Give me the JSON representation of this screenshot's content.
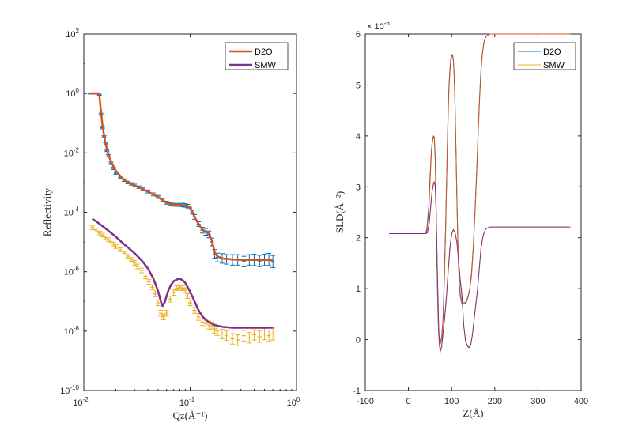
{
  "colors": {
    "blue": "#0072BD",
    "orange": "#D95319",
    "yellow": "#EDB120",
    "purple": "#7E2F8E",
    "axis": "#262626"
  },
  "chart_data": [
    {
      "type": "line",
      "scale": {
        "x": "log",
        "y": "log"
      },
      "xlabel": "Qz(Å⁻¹)",
      "ylabel": "Reflectivity",
      "xlim": [
        0.01,
        1
      ],
      "ylim": [
        1e-10,
        100
      ],
      "xticks": [
        {
          "base": "10",
          "exp": "-2"
        },
        {
          "base": "10",
          "exp": "-1"
        },
        {
          "base": "10",
          "exp": "0"
        }
      ],
      "yticks": [
        {
          "base": "10",
          "exp": "-10"
        },
        {
          "base": "10",
          "exp": "-8"
        },
        {
          "base": "10",
          "exp": "-6"
        },
        {
          "base": "10",
          "exp": "-4"
        },
        {
          "base": "10",
          "exp": "-2"
        },
        {
          "base": "10",
          "exp": "0"
        },
        {
          "base": "10",
          "exp": "2"
        }
      ],
      "legend": {
        "position": "top-right",
        "entries": [
          "D2O",
          "SMW"
        ]
      },
      "data_series": [
        {
          "color": "#0072BD",
          "errorbars": true,
          "x": [
            0.0115,
            0.0125,
            0.0135,
            0.014,
            0.0145,
            0.015,
            0.0155,
            0.016,
            0.0165,
            0.017,
            0.018,
            0.019,
            0.02,
            0.022,
            0.024,
            0.026,
            0.028,
            0.03,
            0.033,
            0.036,
            0.04,
            0.045,
            0.05,
            0.055,
            0.06,
            0.065,
            0.07,
            0.075,
            0.08,
            0.085,
            0.09,
            0.095,
            0.1,
            0.105,
            0.11,
            0.12,
            0.13,
            0.14,
            0.15,
            0.16,
            0.17,
            0.18,
            0.2,
            0.22,
            0.25,
            0.28,
            0.32,
            0.36,
            0.4,
            0.45,
            0.5,
            0.55,
            0.6
          ],
          "y": [
            1,
            1,
            1,
            0.9,
            0.2,
            0.07,
            0.035,
            0.02,
            0.012,
            0.008,
            0.0045,
            0.003,
            0.0021,
            0.0015,
            0.0012,
            0.001,
            0.0009,
            0.0008,
            0.0007,
            0.0006,
            0.0005,
            0.0004,
            0.00033,
            0.00026,
            0.00021,
            0.00019,
            0.00018,
            0.000178,
            0.000178,
            0.000175,
            0.00017,
            0.00016,
            0.00014,
            0.0001,
            7e-05,
            4e-05,
            2.5e-05,
            2.2e-05,
            1.8e-05,
            1e-05,
            4e-06,
            3e-06,
            2.8e-06,
            2.6e-06,
            2.5e-06,
            2.5e-06,
            2.2e-06,
            2.5e-06,
            2.5e-06,
            2.3e-06,
            2.5e-06,
            2.6e-06,
            2.2e-06
          ],
          "err_factor": [
            1.05,
            1.05,
            1.05,
            1.05,
            1.08,
            1.08,
            1.08,
            1.08,
            1.08,
            1.1,
            1.1,
            1.1,
            1.1,
            1.1,
            1.1,
            1.1,
            1.1,
            1.1,
            1.1,
            1.1,
            1.12,
            1.12,
            1.12,
            1.12,
            1.12,
            1.12,
            1.12,
            1.12,
            1.12,
            1.15,
            1.15,
            1.15,
            1.15,
            1.15,
            1.2,
            1.2,
            1.25,
            1.3,
            1.3,
            1.35,
            1.4,
            1.4,
            1.45,
            1.45,
            1.5,
            1.5,
            1.5,
            1.5,
            1.55,
            1.55,
            1.55,
            1.6,
            1.6
          ]
        },
        {
          "color": "#EDB120",
          "errorbars": true,
          "x": [
            0.012,
            0.013,
            0.014,
            0.015,
            0.016,
            0.017,
            0.018,
            0.019,
            0.02,
            0.022,
            0.024,
            0.026,
            0.028,
            0.03,
            0.032,
            0.035,
            0.038,
            0.041,
            0.044,
            0.047,
            0.05,
            0.053,
            0.056,
            0.06,
            0.065,
            0.07,
            0.075,
            0.08,
            0.085,
            0.09,
            0.095,
            0.1,
            0.11,
            0.12,
            0.13,
            0.14,
            0.15,
            0.16,
            0.17,
            0.18,
            0.2,
            0.22,
            0.25,
            0.28,
            0.32,
            0.36,
            0.4,
            0.45,
            0.5,
            0.55,
            0.6
          ],
          "y": [
            3e-05,
            2.5e-05,
            2e-05,
            1.7e-05,
            1.4e-05,
            1.2e-05,
            1e-05,
            8.5e-06,
            7e-06,
            5.5e-06,
            4.2e-06,
            3.3e-06,
            2.6e-06,
            2e-06,
            1.5e-06,
            1.1e-06,
            7e-07,
            4.5e-07,
            3e-07,
            1.8e-07,
            9e-08,
            4e-08,
            3e-08,
            4e-08,
            1.2e-07,
            2e-07,
            2.8e-07,
            3e-07,
            2.8e-07,
            2.4e-07,
            1.5e-07,
            9e-08,
            5e-08,
            3e-08,
            2e-08,
            1.8e-08,
            1.6e-08,
            1.5e-08,
            1.2e-08,
            1e-08,
            8e-09,
            7e-09,
            5.5e-09,
            5e-09,
            7e-09,
            6e-09,
            7.5e-09,
            6.5e-09,
            8e-09,
            7e-09,
            8e-09
          ],
          "err_factor": [
            1.15,
            1.15,
            1.15,
            1.15,
            1.15,
            1.15,
            1.15,
            1.15,
            1.15,
            1.15,
            1.15,
            1.15,
            1.15,
            1.2,
            1.2,
            1.2,
            1.2,
            1.2,
            1.2,
            1.25,
            1.25,
            1.25,
            1.25,
            1.25,
            1.25,
            1.25,
            1.2,
            1.2,
            1.2,
            1.2,
            1.2,
            1.25,
            1.25,
            1.3,
            1.3,
            1.3,
            1.35,
            1.35,
            1.4,
            1.4,
            1.45,
            1.45,
            1.5,
            1.5,
            1.5,
            1.5,
            1.5,
            1.55,
            1.55,
            1.55,
            1.6
          ]
        }
      ],
      "series": [
        {
          "name": "D2O",
          "color": "#D95319",
          "width": 2.5,
          "x": [
            0.0115,
            0.0135,
            0.014,
            0.0145,
            0.015,
            0.016,
            0.017,
            0.018,
            0.02,
            0.023,
            0.026,
            0.03,
            0.035,
            0.04,
            0.045,
            0.05,
            0.055,
            0.06,
            0.065,
            0.07,
            0.075,
            0.08,
            0.085,
            0.09,
            0.095,
            0.1,
            0.105,
            0.11,
            0.12,
            0.13,
            0.14,
            0.15,
            0.16,
            0.17,
            0.18,
            0.2,
            0.25,
            0.3,
            0.4,
            0.5,
            0.6
          ],
          "y": [
            1,
            1,
            0.9,
            0.25,
            0.08,
            0.02,
            0.009,
            0.005,
            0.0025,
            0.0014,
            0.001,
            0.00078,
            0.00062,
            0.0005,
            0.0004,
            0.00032,
            0.00026,
            0.00021,
            0.00019,
            0.00018,
            0.000178,
            0.000178,
            0.000176,
            0.00017,
            0.00016,
            0.00014,
            0.0001,
            7e-05,
            4e-05,
            2.6e-05,
            2.2e-05,
            1.9e-05,
            1.1e-05,
            4.5e-06,
            3.3e-06,
            2.8e-06,
            2.6e-06,
            2.5e-06,
            2.5e-06,
            2.5e-06,
            2.5e-06
          ]
        },
        {
          "name": "SMW",
          "color": "#7E2F8E",
          "width": 2.5,
          "x": [
            0.012,
            0.013,
            0.015,
            0.017,
            0.02,
            0.023,
            0.026,
            0.03,
            0.035,
            0.04,
            0.045,
            0.05,
            0.053,
            0.055,
            0.058,
            0.062,
            0.066,
            0.07,
            0.075,
            0.08,
            0.085,
            0.09,
            0.1,
            0.11,
            0.12,
            0.13,
            0.14,
            0.15,
            0.17,
            0.2,
            0.25,
            0.3,
            0.4,
            0.5,
            0.6
          ],
          "y": [
            6e-05,
            5e-05,
            3.4e-05,
            2.4e-05,
            1.5e-05,
            9.5e-06,
            6.5e-06,
            4.2e-06,
            2.4e-06,
            1.3e-06,
            6e-07,
            2.2e-07,
            1e-07,
            7e-08,
            1e-07,
            2.2e-07,
            3.6e-07,
            4.8e-07,
            5.5e-07,
            5.8e-07,
            5.2e-07,
            4.2e-07,
            2.1e-07,
            1e-07,
            5e-08,
            3.2e-08,
            2.4e-08,
            2e-08,
            1.6e-08,
            1.4e-08,
            1.3e-08,
            1.3e-08,
            1.3e-08,
            1.3e-08,
            1.3e-08
          ]
        }
      ]
    },
    {
      "type": "line",
      "xlabel": "Z(Å)",
      "ylabel": "SLD(Å⁻²)",
      "exponent_label": {
        "base": "× 10",
        "exp": "-6"
      },
      "xlim": [
        -100,
        400
      ],
      "ylim": [
        -1,
        6
      ],
      "xticks": [
        -100,
        0,
        100,
        200,
        300,
        400
      ],
      "yticks": [
        -1,
        0,
        1,
        2,
        3,
        4,
        5,
        6
      ],
      "legend": {
        "position": "top-right",
        "entries": [
          "D2O",
          "SMW"
        ]
      },
      "series": [
        {
          "name": "D2O",
          "color": "#0072BD",
          "width": 1,
          "x": [
            -45,
            40,
            43,
            47,
            50,
            53,
            56,
            58,
            60,
            62,
            64,
            66,
            68,
            70,
            72,
            74,
            77,
            80,
            83,
            86,
            88,
            90,
            92,
            94,
            96,
            98,
            100,
            102,
            104,
            106,
            108,
            110,
            112,
            114,
            116,
            118,
            120,
            123,
            126,
            130,
            134,
            138,
            142,
            146,
            150,
            154,
            158,
            162,
            165,
            168,
            171,
            174,
            177,
            180,
            184,
            188,
            192,
            196,
            200,
            210,
            375
          ],
          "y": [
            2.08,
            2.08,
            2.2,
            2.6,
            3.2,
            3.7,
            3.95,
            4.0,
            3.95,
            3.5,
            2.6,
            1.5,
            0.6,
            0.1,
            -0.1,
            -0.05,
            0.05,
            0.4,
            1.2,
            2.2,
            3.0,
            3.8,
            4.5,
            5.0,
            5.3,
            5.5,
            5.58,
            5.6,
            5.5,
            5.2,
            4.6,
            3.8,
            2.9,
            2.1,
            1.5,
            1.1,
            0.9,
            0.75,
            0.72,
            0.72,
            0.75,
            0.85,
            1.0,
            1.3,
            1.8,
            2.5,
            3.3,
            4.2,
            4.8,
            5.3,
            5.6,
            5.8,
            5.9,
            5.95,
            5.98,
            6.0,
            6.0,
            6.0,
            6.0,
            6.0,
            6.0
          ]
        },
        {
          "name": "",
          "color": "#D95319",
          "width": 1,
          "x": [
            -45,
            40,
            43,
            47,
            50,
            53,
            56,
            58,
            60,
            62,
            64,
            66,
            68,
            70,
            72,
            74,
            77,
            80,
            83,
            86,
            88,
            90,
            92,
            94,
            96,
            98,
            100,
            102,
            104,
            106,
            108,
            110,
            112,
            114,
            116,
            118,
            120,
            123,
            126,
            130,
            134,
            138,
            142,
            146,
            150,
            154,
            158,
            162,
            165,
            168,
            171,
            174,
            177,
            180,
            184,
            188,
            192,
            196,
            200,
            210,
            375
          ],
          "y": [
            2.08,
            2.08,
            2.15,
            2.5,
            3.1,
            3.65,
            3.9,
            4.0,
            3.98,
            3.6,
            2.7,
            1.6,
            0.7,
            0.1,
            -0.12,
            -0.08,
            0.02,
            0.35,
            1.1,
            2.1,
            2.9,
            3.7,
            4.4,
            4.95,
            5.25,
            5.45,
            5.55,
            5.58,
            5.48,
            5.15,
            4.55,
            3.75,
            2.85,
            2.05,
            1.45,
            1.05,
            0.85,
            0.72,
            0.7,
            0.7,
            0.73,
            0.83,
            0.98,
            1.25,
            1.75,
            2.45,
            3.25,
            4.15,
            4.75,
            5.25,
            5.58,
            5.78,
            5.9,
            5.95,
            5.98,
            6.0,
            6.0,
            6.0,
            6.0,
            6.0,
            6.0
          ]
        },
        {
          "name": "SMW",
          "color": "#EDB120",
          "width": 1,
          "x": [
            -45,
            40,
            44,
            48,
            52,
            55,
            58,
            60,
            62,
            64,
            66,
            68,
            70,
            72,
            74,
            77,
            80,
            84,
            88,
            92,
            96,
            100,
            104,
            108,
            112,
            116,
            120,
            124,
            128,
            132,
            136,
            140,
            144,
            148,
            152,
            156,
            160,
            164,
            168,
            172,
            176,
            180,
            185,
            190,
            200,
            375
          ],
          "y": [
            2.08,
            2.08,
            2.1,
            2.3,
            2.7,
            2.95,
            3.08,
            3.1,
            3.0,
            2.5,
            1.7,
            0.9,
            0.2,
            -0.15,
            -0.25,
            -0.15,
            0.1,
            0.4,
            0.8,
            1.3,
            1.75,
            2.05,
            2.15,
            2.1,
            1.95,
            1.6,
            1.2,
            0.9,
            0.3,
            0.0,
            -0.1,
            -0.15,
            -0.1,
            0.1,
            0.4,
            0.7,
            1.0,
            1.4,
            1.8,
            2.0,
            2.12,
            2.18,
            2.2,
            2.21,
            2.21,
            2.21
          ]
        },
        {
          "name": "",
          "color": "#7E2F8E",
          "width": 1,
          "x": [
            -45,
            40,
            44,
            48,
            52,
            55,
            58,
            60,
            62,
            64,
            66,
            68,
            70,
            72,
            74,
            77,
            80,
            84,
            88,
            92,
            96,
            100,
            104,
            108,
            112,
            116,
            120,
            124,
            128,
            132,
            136,
            140,
            144,
            148,
            152,
            156,
            160,
            164,
            168,
            172,
            176,
            180,
            185,
            190,
            200,
            375
          ],
          "y": [
            2.08,
            2.08,
            2.1,
            2.28,
            2.65,
            2.92,
            3.05,
            3.1,
            3.02,
            2.55,
            1.75,
            0.95,
            0.25,
            -0.12,
            -0.22,
            -0.12,
            0.12,
            0.45,
            0.85,
            1.35,
            1.8,
            2.08,
            2.16,
            2.1,
            1.92,
            1.55,
            1.15,
            0.85,
            0.28,
            -0.02,
            -0.12,
            -0.16,
            -0.12,
            0.08,
            0.38,
            0.68,
            0.98,
            1.38,
            1.78,
            2.0,
            2.12,
            2.18,
            2.2,
            2.21,
            2.21,
            2.21
          ]
        }
      ]
    }
  ]
}
